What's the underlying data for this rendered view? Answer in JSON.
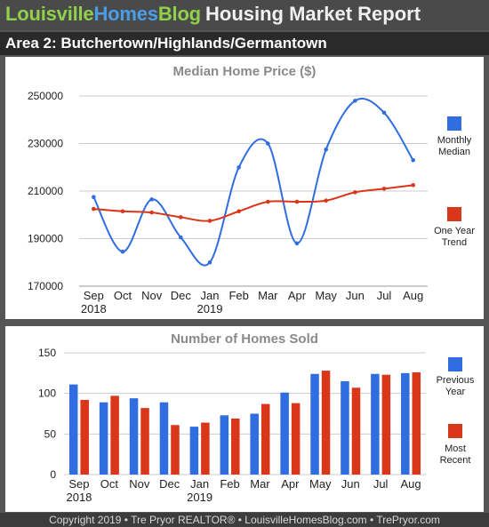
{
  "header": {
    "brand_part1": "Louisville",
    "brand_part2": "Homes",
    "brand_part3": "Blog",
    "report_title": "Housing Market Report",
    "area_title": "Area 2: Butchertown/Highlands/Germantown"
  },
  "footer": {
    "text": "Copyright 2019 • Tre Pryor REALTOR® • LouisvilleHomesBlog.com • TrePryor.com"
  },
  "colors": {
    "blue": "#2f6de0",
    "red": "#d9361a",
    "grid": "#cccccc",
    "title_gray": "#8a8a8a",
    "text": "#222222"
  },
  "chart_data": [
    {
      "type": "line",
      "title": "Median Home Price ($)",
      "categories": [
        "Sep",
        "Oct",
        "Nov",
        "Dec",
        "Jan",
        "Feb",
        "Mar",
        "Apr",
        "May",
        "Jun",
        "Jul",
        "Aug"
      ],
      "year_labels": [
        "2018",
        "",
        "",
        "",
        "2019",
        "",
        "",
        "",
        "",
        "",
        "",
        ""
      ],
      "yticks": [
        170000,
        190000,
        210000,
        230000,
        250000
      ],
      "ylim": [
        170000,
        253000
      ],
      "grid": true,
      "legend_position": "right",
      "series": [
        {
          "name": "Monthly Median",
          "color": "#2f6de0",
          "values": [
            207500,
            184500,
            206500,
            190500,
            180000,
            220000,
            230000,
            188000,
            227500,
            248000,
            243000,
            223000
          ]
        },
        {
          "name": "One Year Trend",
          "color": "#d9361a",
          "values": [
            202500,
            201500,
            201000,
            199000,
            197500,
            201500,
            205500,
            205500,
            206000,
            209500,
            211000,
            212500
          ]
        }
      ]
    },
    {
      "type": "bar",
      "title": "Number of Homes Sold",
      "categories": [
        "Sep",
        "Oct",
        "Nov",
        "Dec",
        "Jan",
        "Feb",
        "Mar",
        "Apr",
        "May",
        "Jun",
        "Jul",
        "Aug"
      ],
      "year_labels": [
        "2018",
        "",
        "",
        "",
        "2019",
        "",
        "",
        "",
        "",
        "",
        "",
        ""
      ],
      "yticks": [
        0,
        50,
        100,
        150
      ],
      "ylim": [
        0,
        150
      ],
      "grid": true,
      "legend_position": "right",
      "series": [
        {
          "name": "Previous Year",
          "color": "#2f6de0",
          "values": [
            111,
            89,
            94,
            89,
            59,
            73,
            75,
            101,
            124,
            115,
            124,
            125
          ]
        },
        {
          "name": "Most Recent",
          "color": "#d9361a",
          "values": [
            92,
            97,
            82,
            61,
            64,
            69,
            87,
            88,
            128,
            107,
            123,
            126
          ]
        }
      ]
    }
  ]
}
